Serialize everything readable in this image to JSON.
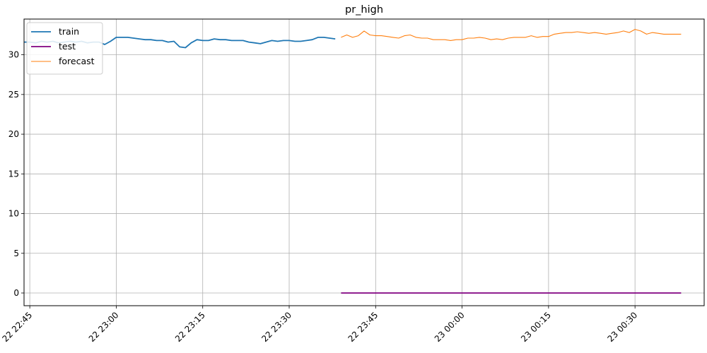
{
  "chart_data": {
    "type": "line",
    "title": "pr_high",
    "xlabel": "",
    "ylabel": "",
    "x_axis": {
      "type": "datetime",
      "range": [
        "22 22:44",
        "23 00:42"
      ],
      "ticks": [
        {
          "value": "22 22:45",
          "label": "22 22:45"
        },
        {
          "value": "22 23:00",
          "label": "22 23:00"
        },
        {
          "value": "22 23:15",
          "label": "22 23:15"
        },
        {
          "value": "22 23:30",
          "label": "22 23:30"
        },
        {
          "value": "22 23:45",
          "label": "22 23:45"
        },
        {
          "value": "23 00:00",
          "label": "23 00:00"
        },
        {
          "value": "23 00:15",
          "label": "23 00:15"
        },
        {
          "value": "23 00:30",
          "label": "23 00:30"
        }
      ]
    },
    "y_axis": {
      "range": [
        -1.6,
        34.5
      ],
      "ticks": [
        0,
        5,
        10,
        15,
        20,
        25,
        30
      ]
    },
    "grid": true,
    "legend_position": "top-left",
    "series": [
      {
        "name": "train",
        "color": "#1f77b4",
        "line_width": 1.8,
        "x": [
          "22 22:44",
          "22 22:45",
          "22 22:46",
          "22 22:47",
          "22 22:48",
          "22 22:49",
          "22 22:50",
          "22 22:51",
          "22 22:52",
          "22 22:53",
          "22 22:54",
          "22 22:55",
          "22 22:56",
          "22 22:57",
          "22 22:58",
          "22 22:59",
          "22 23:00",
          "22 23:01",
          "22 23:02",
          "22 23:03",
          "22 23:04",
          "22 23:05",
          "22 23:06",
          "22 23:07",
          "22 23:08",
          "22 23:09",
          "22 23:10",
          "22 23:11",
          "22 23:12",
          "22 23:13",
          "22 23:14",
          "22 23:15",
          "22 23:16",
          "22 23:17",
          "22 23:18",
          "22 23:19",
          "22 23:20",
          "22 23:21",
          "22 23:22",
          "22 23:23",
          "22 23:24",
          "22 23:25",
          "22 23:26",
          "22 23:27",
          "22 23:28",
          "22 23:29",
          "22 23:30",
          "22 23:31",
          "22 23:32",
          "22 23:33",
          "22 23:34",
          "22 23:35",
          "22 23:36",
          "22 23:37",
          "22 23:38"
        ],
        "y": [
          31.6,
          31.6,
          31.5,
          31.7,
          31.6,
          31.7,
          31.5,
          31.6,
          31.7,
          31.6,
          31.7,
          31.5,
          31.6,
          31.6,
          31.3,
          31.7,
          32.2,
          32.2,
          32.2,
          32.1,
          32.0,
          31.9,
          31.9,
          31.8,
          31.8,
          31.6,
          31.7,
          31.0,
          30.9,
          31.5,
          31.9,
          31.8,
          31.8,
          32.0,
          31.9,
          31.9,
          31.8,
          31.8,
          31.8,
          31.6,
          31.5,
          31.4,
          31.6,
          31.8,
          31.7,
          31.8,
          31.8,
          31.7,
          31.7,
          31.8,
          31.9,
          32.2,
          32.2,
          32.1,
          32.0
        ]
      },
      {
        "name": "test",
        "color": "#800080",
        "line_width": 1.8,
        "x": [
          "22 23:39",
          "23 00:38"
        ],
        "y": [
          0,
          0
        ]
      },
      {
        "name": "forecast",
        "color": "#ff7f0e",
        "line_width": 1.1,
        "x": [
          "22 23:39",
          "22 23:40",
          "22 23:41",
          "22 23:42",
          "22 23:43",
          "22 23:44",
          "22 23:45",
          "22 23:46",
          "22 23:47",
          "22 23:48",
          "22 23:49",
          "22 23:50",
          "22 23:51",
          "22 23:52",
          "22 23:53",
          "22 23:54",
          "22 23:55",
          "22 23:56",
          "22 23:57",
          "22 23:58",
          "22 23:59",
          "23 00:00",
          "23 00:01",
          "23 00:02",
          "23 00:03",
          "23 00:04",
          "23 00:05",
          "23 00:06",
          "23 00:07",
          "23 00:08",
          "23 00:09",
          "23 00:10",
          "23 00:11",
          "23 00:12",
          "23 00:13",
          "23 00:14",
          "23 00:15",
          "23 00:16",
          "23 00:17",
          "23 00:18",
          "23 00:19",
          "23 00:20",
          "23 00:21",
          "23 00:22",
          "23 00:23",
          "23 00:24",
          "23 00:25",
          "23 00:26",
          "23 00:27",
          "23 00:28",
          "23 00:29",
          "23 00:30",
          "23 00:31",
          "23 00:32",
          "23 00:33",
          "23 00:34",
          "23 00:35",
          "23 00:36",
          "23 00:37",
          "23 00:38"
        ],
        "y": [
          32.2,
          32.5,
          32.2,
          32.4,
          33.0,
          32.5,
          32.4,
          32.4,
          32.3,
          32.2,
          32.1,
          32.4,
          32.5,
          32.2,
          32.1,
          32.1,
          31.9,
          31.9,
          31.9,
          31.8,
          31.9,
          31.9,
          32.1,
          32.1,
          32.2,
          32.1,
          31.9,
          32.0,
          31.9,
          32.1,
          32.2,
          32.2,
          32.2,
          32.4,
          32.2,
          32.3,
          32.3,
          32.6,
          32.7,
          32.8,
          32.8,
          32.9,
          32.8,
          32.7,
          32.8,
          32.7,
          32.6,
          32.7,
          32.8,
          33.0,
          32.8,
          33.2,
          33.0,
          32.6,
          32.8,
          32.7,
          32.6,
          32.6,
          32.6,
          32.6
        ]
      }
    ]
  }
}
